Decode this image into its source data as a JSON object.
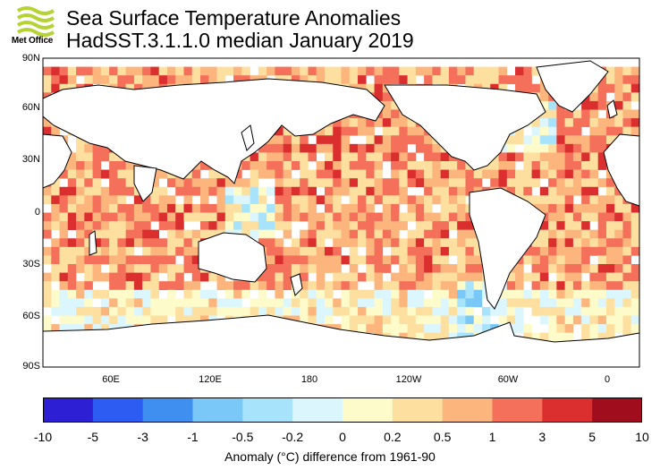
{
  "header": {
    "logo_text": "Met Office",
    "title_line1": "Sea Surface Temperature Anomalies",
    "title_line2": "HadSST.3.1.1.0 median January 2019"
  },
  "map": {
    "lat_labels": [
      "90N",
      "60N",
      "30N",
      "0",
      "30S",
      "60S",
      "90S"
    ],
    "lon_labels": [
      "60E",
      "120E",
      "180",
      "120W",
      "60W",
      "0"
    ],
    "projection": "equirectangular, Pacific-centred",
    "anomaly_grid_note": "5-degree boxes coloured by anomaly class; mostly positive (orange/red), cooler patches in western tropical Pacific, Southern Ocean near Drake Passage and parts of North Atlantic"
  },
  "colorbar": {
    "tick_labels": [
      "-10",
      "-5",
      "-3",
      "-1",
      "-0.5",
      "-0.2",
      "0",
      "0.2",
      "0.5",
      "1",
      "3",
      "5",
      "10"
    ],
    "colors": [
      "#2d1fd4",
      "#2c5cf2",
      "#3f8ff0",
      "#79c8f7",
      "#a7e3fb",
      "#dcf6fd",
      "#fdfbc9",
      "#fde0a0",
      "#fcb57c",
      "#f4705a",
      "#db2e2e",
      "#a00d1c"
    ],
    "label": "Anomaly (°C) difference from 1961-90"
  },
  "chart_data": {
    "type": "heatmap",
    "title": "Sea Surface Temperature Anomalies",
    "subtitle": "HadSST.3.1.1.0 median January 2019",
    "xlabel": "",
    "ylabel": "",
    "colorbar_label": "Anomaly (°C) difference from 1961-90",
    "bins": [
      -10,
      -5,
      -3,
      -1,
      -0.5,
      -0.2,
      0,
      0.2,
      0.5,
      1,
      3,
      5,
      10
    ],
    "x_ticks": [
      "60E",
      "120E",
      "180",
      "120W",
      "60W",
      "0"
    ],
    "y_ticks": [
      "90N",
      "60N",
      "30N",
      "0",
      "30S",
      "60S",
      "90S"
    ]
  }
}
